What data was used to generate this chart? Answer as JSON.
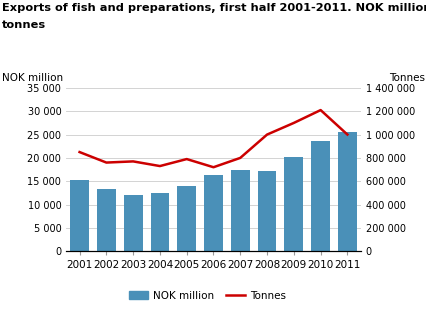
{
  "title_line1": "Exports of fish and preparations, first half 2001-2011. NOK million and",
  "title_line2": "tonnes",
  "years": [
    2001,
    2002,
    2003,
    2004,
    2005,
    2006,
    2007,
    2008,
    2009,
    2010,
    2011
  ],
  "nok_million": [
    15200,
    13300,
    12100,
    12500,
    13900,
    16300,
    17500,
    17200,
    20200,
    23700,
    25600
  ],
  "tonnes": [
    850000,
    760000,
    770000,
    730000,
    790000,
    720000,
    800000,
    1000000,
    1100000,
    1210000,
    1000000
  ],
  "bar_color": "#4a90b8",
  "line_color": "#cc0000",
  "label_left": "NOK million",
  "label_right": "Tonnes",
  "ylim_left": [
    0,
    35000
  ],
  "ylim_right": [
    0,
    1400000
  ],
  "yticks_left": [
    0,
    5000,
    10000,
    15000,
    20000,
    25000,
    30000,
    35000
  ],
  "yticks_right": [
    0,
    200000,
    400000,
    600000,
    800000,
    1000000,
    1200000,
    1400000
  ],
  "ytick_labels_left": [
    "0",
    "5 000",
    "10 000",
    "15 000",
    "20 000",
    "25 000",
    "30 000",
    "35 000"
  ],
  "ytick_labels_right": [
    "0",
    "200 000",
    "400 000",
    "600 000",
    "800 000",
    "1 000 000",
    "1 200 000",
    "1 400 000"
  ],
  "legend_bar_label": "NOK million",
  "legend_line_label": "Tonnes",
  "background_color": "#ffffff",
  "grid_color": "#cccccc"
}
